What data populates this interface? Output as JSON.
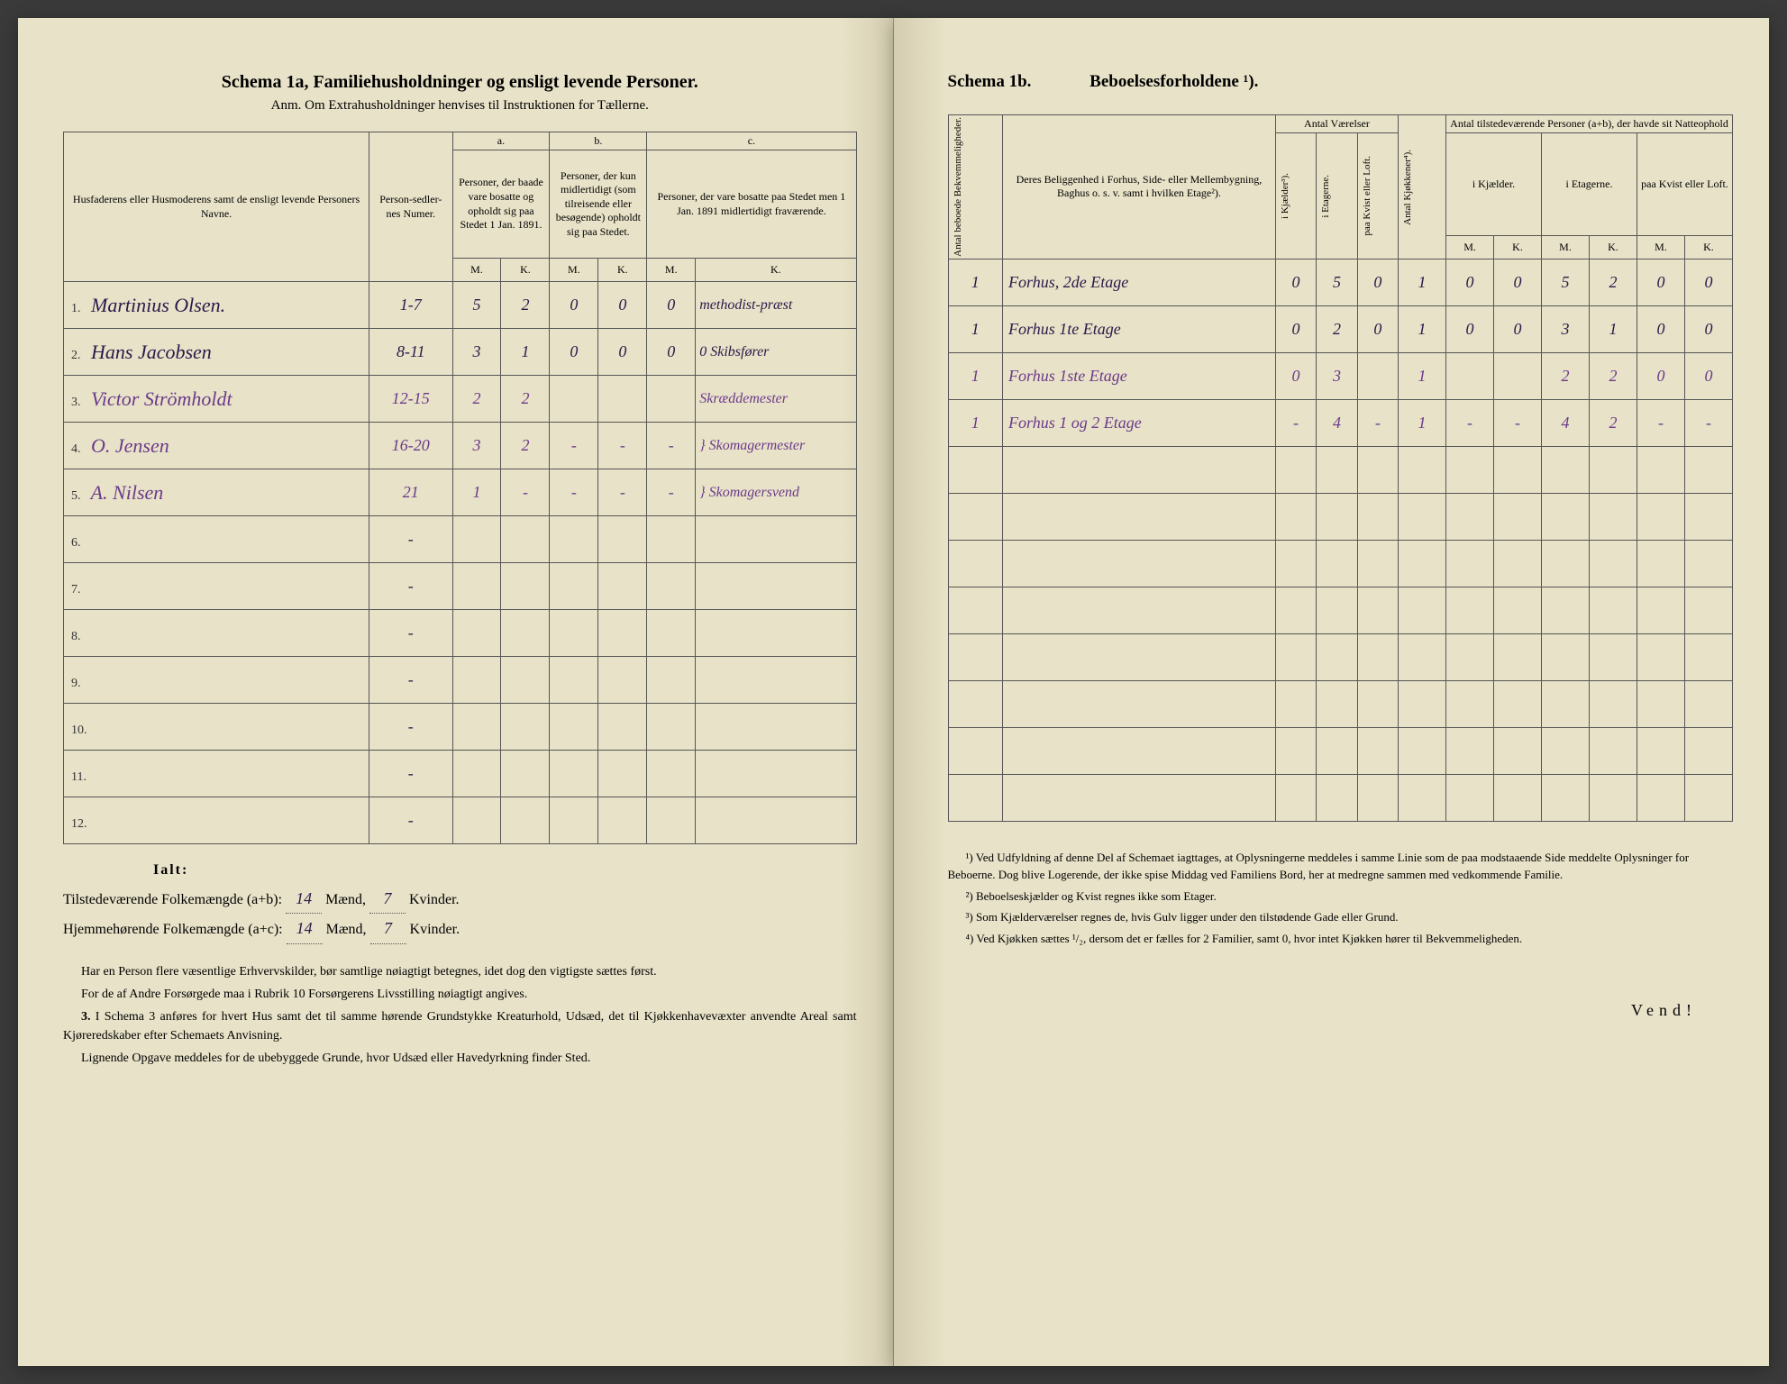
{
  "leftPage": {
    "mainTitle": "Schema 1a, Familiehusholdninger og ensligt levende Personer.",
    "subtitle": "Anm. Om Extrahusholdninger henvises til Instruktionen for Tællerne.",
    "headers": {
      "col1": "Husfaderens eller Husmoderens samt de ensligt levende Personers Navne.",
      "col2": "Person-sedler-nes Numer.",
      "a_label": "a.",
      "b_label": "b.",
      "c_label": "c.",
      "col_a": "Personer, der baade vare bosatte og opholdt sig paa Stedet 1 Jan. 1891.",
      "col_b": "Personer, der kun midlertidigt (som tilreisende eller besøgende) opholdt sig paa Stedet.",
      "col_c": "Personer, der vare bosatte paa Stedet men 1 Jan. 1891 midlertidigt fraværende.",
      "M": "M.",
      "K": "K."
    },
    "rows": [
      {
        "num": "1.",
        "name": "Martinius Olsen.",
        "sedler": "1-7",
        "aM": "5",
        "aK": "2",
        "bM": "0",
        "bK": "0",
        "cM": "0",
        "cK": "methodist-præst",
        "purple": false
      },
      {
        "num": "2.",
        "name": "Hans Jacobsen",
        "sedler": "8-11",
        "aM": "3",
        "aK": "1",
        "bM": "0",
        "bK": "0",
        "cM": "0",
        "cK": "0 Skibsfører",
        "purple": false
      },
      {
        "num": "3.",
        "name": "Victor Strömholdt",
        "sedler": "12-15",
        "aM": "2",
        "aK": "2",
        "bM": "",
        "bK": "",
        "cM": "",
        "cK": "Skræddemester",
        "purple": true
      },
      {
        "num": "4.",
        "name": "O. Jensen",
        "sedler": "16-20",
        "aM": "3",
        "aK": "2",
        "bM": "-",
        "bK": "-",
        "cM": "-",
        "cK": "} Skomagermester",
        "purple": true
      },
      {
        "num": "5.",
        "name": "A. Nilsen",
        "sedler": "21",
        "aM": "1",
        "aK": "-",
        "bM": "-",
        "bK": "-",
        "cM": "-",
        "cK": "} Skomagersvend",
        "purple": true
      },
      {
        "num": "6.",
        "name": "",
        "sedler": "-",
        "aM": "",
        "aK": "",
        "bM": "",
        "bK": "",
        "cM": "",
        "cK": "",
        "purple": false
      },
      {
        "num": "7.",
        "name": "",
        "sedler": "-",
        "aM": "",
        "aK": "",
        "bM": "",
        "bK": "",
        "cM": "",
        "cK": "",
        "purple": false
      },
      {
        "num": "8.",
        "name": "",
        "sedler": "-",
        "aM": "",
        "aK": "",
        "bM": "",
        "bK": "",
        "cM": "",
        "cK": "",
        "purple": false
      },
      {
        "num": "9.",
        "name": "",
        "sedler": "-",
        "aM": "",
        "aK": "",
        "bM": "",
        "bK": "",
        "cM": "",
        "cK": "",
        "purple": false
      },
      {
        "num": "10.",
        "name": "",
        "sedler": "-",
        "aM": "",
        "aK": "",
        "bM": "",
        "bK": "",
        "cM": "",
        "cK": "",
        "purple": false
      },
      {
        "num": "11.",
        "name": "",
        "sedler": "-",
        "aM": "",
        "aK": "",
        "bM": "",
        "bK": "",
        "cM": "",
        "cK": "",
        "purple": false
      },
      {
        "num": "12.",
        "name": "",
        "sedler": "-",
        "aM": "",
        "aK": "",
        "bM": "",
        "bK": "",
        "cM": "",
        "cK": "",
        "purple": false
      }
    ],
    "totals": {
      "ialt": "Ialt:",
      "line1_label": "Tilstedeværende Folkemængde (a+b):",
      "line1_m": "14",
      "line1_mlabel": "Mænd,",
      "line1_k": "7",
      "line1_klabel": "Kvinder.",
      "line2_label": "Hjemmehørende Folkemængde (a+c):",
      "line2_m": "14",
      "line2_mlabel": "Mænd,",
      "line2_k": "7",
      "line2_klabel": "Kvinder."
    },
    "notes": {
      "p1": "Har en Person flere væsentlige Erhvervskilder, bør samtlige nøiagtigt betegnes, idet dog den vigtigste sættes først.",
      "p2": "For de af Andre Forsørgede maa i Rubrik 10 Forsørgerens Livsstilling nøiagtigt angives.",
      "p3_num": "3.",
      "p3": "I Schema 3 anføres for hvert Hus samt det til samme hørende Grundstykke Kreaturhold, Udsæd, det til Kjøkkenhavevæxter anvendte Areal samt Kjøreredskaber efter Schemaets Anvisning.",
      "p4": "Lignende Opgave meddeles for de ubebyggede Grunde, hvor Udsæd eller Havedyrkning finder Sted."
    }
  },
  "rightPage": {
    "title_a": "Schema 1b.",
    "title_b": "Beboelsesforholdene ¹).",
    "headers": {
      "col1": "Antal beboede Bekvemmeligheder.",
      "col2": "Deres Beliggenhed i Forhus, Side- eller Mellembygning, Baghus o. s. v. samt i hvilken Etage²).",
      "antal_v": "Antal Værelser",
      "col_k": "i Kjælder³).",
      "col_e": "i Etagerne.",
      "col_kv": "paa Kvist eller Loft.",
      "col_kj": "Antal Kjøkkener⁴).",
      "natteophold": "Antal tilstedeværende Personer (a+b), der havde sit Natteophold",
      "n_kj": "i Kjælder.",
      "n_et": "i Etagerne.",
      "n_kv": "paa Kvist eller Loft.",
      "M": "M.",
      "K": "K."
    },
    "rows": [
      {
        "bekv": "1",
        "belig": "Forhus, 2de Etage",
        "kj": "0",
        "et": "5",
        "kv": "0",
        "kjok": "1",
        "nKjM": "0",
        "nKjK": "0",
        "nEtM": "5",
        "nEtK": "2",
        "nKvM": "0",
        "nKvK": "0",
        "purple": false
      },
      {
        "bekv": "1",
        "belig": "Forhus 1te Etage",
        "kj": "0",
        "et": "2",
        "kv": "0",
        "kjok": "1",
        "nKjM": "0",
        "nKjK": "0",
        "nEtM": "3",
        "nEtK": "1",
        "nKvM": "0",
        "nKvK": "0",
        "purple": false
      },
      {
        "bekv": "1",
        "belig": "Forhus 1ste Etage",
        "kj": "0",
        "et": "3",
        "kv": "",
        "kjok": "1",
        "nKjM": "",
        "nKjK": "",
        "nEtM": "2",
        "nEtK": "2",
        "nKvM": "0",
        "nKvK": "0",
        "purple": true
      },
      {
        "bekv": "1",
        "belig": "Forhus 1 og 2 Etage",
        "kj": "-",
        "et": "4",
        "kv": "-",
        "kjok": "1",
        "nKjM": "-",
        "nKjK": "-",
        "nEtM": "4",
        "nEtK": "2",
        "nKvM": "-",
        "nKvK": "-",
        "purple": true
      },
      {
        "bekv": "",
        "belig": "",
        "kj": "",
        "et": "",
        "kv": "",
        "kjok": "",
        "nKjM": "",
        "nKjK": "",
        "nEtM": "",
        "nEtK": "",
        "nKvM": "",
        "nKvK": "",
        "purple": false
      },
      {
        "bekv": "",
        "belig": "",
        "kj": "",
        "et": "",
        "kv": "",
        "kjok": "",
        "nKjM": "",
        "nKjK": "",
        "nEtM": "",
        "nEtK": "",
        "nKvM": "",
        "nKvK": "",
        "purple": false
      },
      {
        "bekv": "",
        "belig": "",
        "kj": "",
        "et": "",
        "kv": "",
        "kjok": "",
        "nKjM": "",
        "nKjK": "",
        "nEtM": "",
        "nEtK": "",
        "nKvM": "",
        "nKvK": "",
        "purple": false
      },
      {
        "bekv": "",
        "belig": "",
        "kj": "",
        "et": "",
        "kv": "",
        "kjok": "",
        "nKjM": "",
        "nKjK": "",
        "nEtM": "",
        "nEtK": "",
        "nKvM": "",
        "nKvK": "",
        "purple": false
      },
      {
        "bekv": "",
        "belig": "",
        "kj": "",
        "et": "",
        "kv": "",
        "kjok": "",
        "nKjM": "",
        "nKjK": "",
        "nEtM": "",
        "nEtK": "",
        "nKvM": "",
        "nKvK": "",
        "purple": false
      },
      {
        "bekv": "",
        "belig": "",
        "kj": "",
        "et": "",
        "kv": "",
        "kjok": "",
        "nKjM": "",
        "nKjK": "",
        "nEtM": "",
        "nEtK": "",
        "nKvM": "",
        "nKvK": "",
        "purple": false
      },
      {
        "bekv": "",
        "belig": "",
        "kj": "",
        "et": "",
        "kv": "",
        "kjok": "",
        "nKjM": "",
        "nKjK": "",
        "nEtM": "",
        "nEtK": "",
        "nKvM": "",
        "nKvK": "",
        "purple": false
      },
      {
        "bekv": "",
        "belig": "",
        "kj": "",
        "et": "",
        "kv": "",
        "kjok": "",
        "nKjM": "",
        "nKjK": "",
        "nEtM": "",
        "nEtK": "",
        "nKvM": "",
        "nKvK": "",
        "purple": false
      }
    ],
    "footnotes": {
      "f1": "¹) Ved Udfyldning af denne Del af Schemaet iagttages, at Oplysningerne meddeles i samme Linie som de paa modstaaende Side meddelte Oplysninger for Beboerne. Dog blive Logerende, der ikke spise Middag ved Familiens Bord, her at medregne sammen med vedkommende Familie.",
      "f2": "²) Beboelseskjælder og Kvist regnes ikke som Etager.",
      "f3": "³) Som Kjælderværelser regnes de, hvis Gulv ligger under den tilstødende Gade eller Grund.",
      "f4": "⁴) Ved Kjøkken sættes ¹/₂, dersom det er fælles for 2 Familier, samt 0, hvor intet Kjøkken hører til Bekvemmeligheden."
    },
    "vend": "Vend!"
  }
}
